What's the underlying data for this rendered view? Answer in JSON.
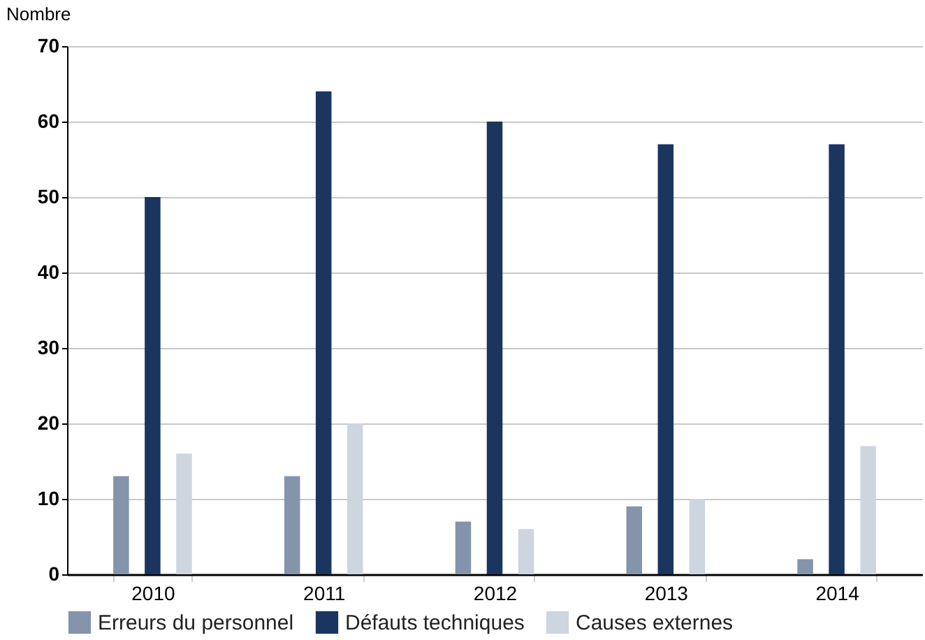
{
  "chart_data": {
    "type": "bar",
    "ylabel": "Nombre",
    "categories": [
      "2010",
      "2011",
      "2012",
      "2013",
      "2014"
    ],
    "series": [
      {
        "name": "Erreurs du personnel",
        "color": "#8494aa",
        "values": [
          13,
          13,
          7,
          9,
          2
        ]
      },
      {
        "name": "Défauts techniques",
        "color": "#1a355e",
        "values": [
          50,
          64,
          60,
          57,
          57
        ]
      },
      {
        "name": "Causes externes",
        "color": "#cdd5df",
        "values": [
          16,
          20,
          6,
          10,
          17
        ]
      }
    ],
    "ylim": [
      0,
      70
    ],
    "yticks": [
      0,
      10,
      20,
      30,
      40,
      50,
      60,
      70
    ],
    "grid": "y",
    "legend": "bottom"
  }
}
